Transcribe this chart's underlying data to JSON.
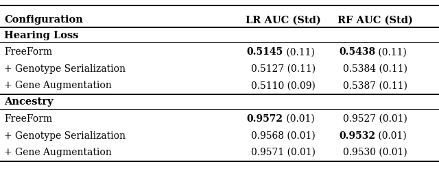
{
  "col_headers": [
    "Configuration",
    "LR AUC (Std)",
    "RF AUC (Std)"
  ],
  "section_hearing": "Hearing Loss",
  "section_ancestry": "Ancestry",
  "rows": [
    {
      "config": "FreeForm",
      "lr_bold": true,
      "lr_val": "0.5145",
      "lr_std": " (0.11)",
      "rf_bold": true,
      "rf_val": "0.5438",
      "rf_std": " (0.11)",
      "section": "hearing"
    },
    {
      "config": "+ Genotype Serialization",
      "lr_bold": false,
      "lr_val": "0.5127",
      "lr_std": " (0.11)",
      "rf_bold": false,
      "rf_val": "0.5384",
      "rf_std": " (0.11)",
      "section": "hearing"
    },
    {
      "config": "+ Gene Augmentation",
      "lr_bold": false,
      "lr_val": "0.5110",
      "lr_std": " (0.09)",
      "rf_bold": false,
      "rf_val": "0.5387",
      "rf_std": " (0.11)",
      "section": "hearing"
    },
    {
      "config": "FreeForm",
      "lr_bold": true,
      "lr_val": "0.9572",
      "lr_std": " (0.01)",
      "rf_bold": false,
      "rf_val": "0.9527",
      "rf_std": " (0.01)",
      "section": "ancestry"
    },
    {
      "config": "+ Genotype Serialization",
      "lr_bold": false,
      "lr_val": "0.9568",
      "lr_std": " (0.01)",
      "rf_bold": true,
      "rf_val": "0.9532",
      "rf_std": " (0.01)",
      "section": "ancestry"
    },
    {
      "config": "+ Gene Augmentation",
      "lr_bold": false,
      "lr_val": "0.9571",
      "lr_std": " (0.01)",
      "rf_bold": false,
      "rf_val": "0.9530",
      "rf_std": " (0.01)",
      "section": "ancestry"
    }
  ],
  "bg_color": "#ffffff",
  "text_color": "#000000",
  "line_color": "#000000",
  "header_fontsize": 10.5,
  "section_fontsize": 10.5,
  "cell_fontsize": 10.0,
  "figsize": [
    6.4,
    2.75
  ],
  "dpi": 100
}
